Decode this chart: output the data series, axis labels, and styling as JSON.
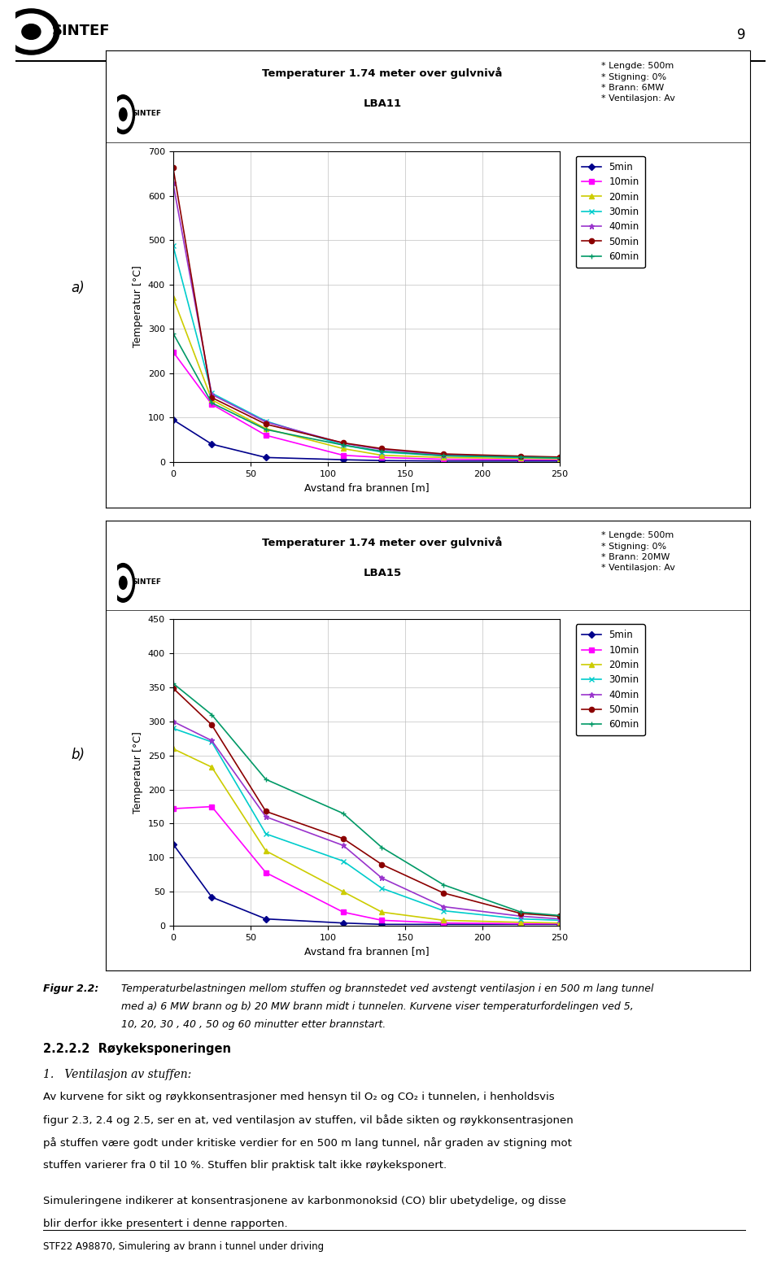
{
  "chart_a": {
    "title_line1": "Temperaturer 1.74 meter over gulvnivå",
    "title_line2": "LBA11",
    "info_text": "* Lengde: 500m\n* Stigning: 0%\n* Brann: 6MW\n* Ventilasjon: Av",
    "xlabel": "Avstand fra brannen [m]",
    "ylabel": "Temperatur [°C]",
    "ylim": [
      0,
      700
    ],
    "yticks": [
      0,
      100,
      200,
      300,
      400,
      500,
      600,
      700
    ],
    "xlim": [
      0,
      250
    ],
    "xticks": [
      0,
      50,
      100,
      150,
      200,
      250
    ],
    "series": {
      "5min": {
        "color": "#00008B",
        "marker": "D",
        "x": [
          0,
          25,
          60,
          110,
          135,
          175,
          225,
          250
        ],
        "y": [
          95,
          40,
          10,
          5,
          3,
          2,
          2,
          2
        ]
      },
      "10min": {
        "color": "#FF00FF",
        "marker": "s",
        "x": [
          0,
          25,
          60,
          110,
          135,
          175,
          225,
          250
        ],
        "y": [
          248,
          130,
          60,
          15,
          10,
          6,
          5,
          5
        ]
      },
      "20min": {
        "color": "#CCCC00",
        "marker": "^",
        "x": [
          0,
          25,
          60,
          110,
          135,
          175,
          225,
          250
        ],
        "y": [
          370,
          140,
          75,
          30,
          15,
          10,
          8,
          7
        ]
      },
      "30min": {
        "color": "#00CCCC",
        "marker": "x",
        "x": [
          0,
          25,
          60,
          110,
          135,
          175,
          225,
          250
        ],
        "y": [
          487,
          155,
          92,
          38,
          22,
          14,
          10,
          9
        ]
      },
      "40min": {
        "color": "#9933CC",
        "marker": "*",
        "x": [
          0,
          25,
          60,
          110,
          135,
          175,
          225,
          250
        ],
        "y": [
          628,
          152,
          90,
          42,
          28,
          16,
          12,
          10
        ]
      },
      "50min": {
        "color": "#8B0000",
        "marker": "o",
        "x": [
          0,
          25,
          60,
          110,
          135,
          175,
          225,
          250
        ],
        "y": [
          663,
          145,
          85,
          43,
          30,
          18,
          13,
          11
        ]
      },
      "60min": {
        "color": "#009966",
        "marker": "+",
        "x": [
          0,
          25,
          60,
          110,
          135,
          175,
          225,
          250
        ],
        "y": [
          290,
          133,
          73,
          38,
          24,
          14,
          11,
          9
        ]
      }
    }
  },
  "chart_b": {
    "title_line1": "Temperaturer 1.74 meter over gulvnivå",
    "title_line2": "LBA15",
    "info_text": "* Lengde: 500m\n* Stigning: 0%\n* Brann: 20MW\n* Ventilasjon: Av",
    "xlabel": "Avstand fra brannen [m]",
    "ylabel": "Temperatur [°C]",
    "ylim": [
      0,
      450
    ],
    "yticks": [
      0,
      50,
      100,
      150,
      200,
      250,
      300,
      350,
      400,
      450
    ],
    "xlim": [
      0,
      250
    ],
    "xticks": [
      0,
      50,
      100,
      150,
      200,
      250
    ],
    "series": {
      "5min": {
        "color": "#00008B",
        "marker": "D",
        "x": [
          0,
          25,
          60,
          110,
          135,
          175,
          225,
          250
        ],
        "y": [
          120,
          42,
          10,
          4,
          2,
          2,
          2,
          2
        ]
      },
      "10min": {
        "color": "#FF00FF",
        "marker": "s",
        "x": [
          0,
          25,
          60,
          110,
          135,
          175,
          225,
          250
        ],
        "y": [
          172,
          175,
          78,
          20,
          8,
          4,
          3,
          3
        ]
      },
      "20min": {
        "color": "#CCCC00",
        "marker": "^",
        "x": [
          0,
          25,
          60,
          110,
          135,
          175,
          225,
          250
        ],
        "y": [
          260,
          233,
          110,
          50,
          20,
          8,
          5,
          4
        ]
      },
      "30min": {
        "color": "#00CCCC",
        "marker": "x",
        "x": [
          0,
          25,
          60,
          110,
          135,
          175,
          225,
          250
        ],
        "y": [
          290,
          270,
          135,
          95,
          55,
          22,
          10,
          8
        ]
      },
      "40min": {
        "color": "#9933CC",
        "marker": "*",
        "x": [
          0,
          25,
          60,
          110,
          135,
          175,
          225,
          250
        ],
        "y": [
          300,
          272,
          160,
          118,
          70,
          28,
          14,
          10
        ]
      },
      "50min": {
        "color": "#8B0000",
        "marker": "o",
        "x": [
          0,
          25,
          60,
          110,
          135,
          175,
          225,
          250
        ],
        "y": [
          349,
          295,
          168,
          128,
          90,
          48,
          18,
          14
        ]
      },
      "60min": {
        "color": "#009966",
        "marker": "+",
        "x": [
          0,
          25,
          60,
          110,
          135,
          175,
          225,
          250
        ],
        "y": [
          356,
          310,
          215,
          165,
          115,
          60,
          20,
          15
        ]
      }
    }
  },
  "page_number": "9",
  "fig_label": "Figur 2.2:",
  "fig_text1": "Temperaturbelastningen mellom stuffen og brannstedet ved avstengt ventilasjon i en 500 m lang tunnel",
  "fig_text2": "med a) 6 MW brann og b) 20 MW brann midt i tunnelen. Kurvene viser temperaturfordelingen ved 5,",
  "fig_text3": "10, 20, 30 , 40 , 50 og 60 minutter etter brannstart.",
  "section_heading": "2.2.2.2  Røykeksponeringen",
  "subsection": "1.   Ventilasjon av stuffen:",
  "para1": "Av kurvene for sikt og røykkonsentrasjoner med hensyn til O₂ og CO₂ i tunnelen, i henholdsvis figur 2.3, 2.4 og 2.5, ser en at, ved ventilasjon av stuffen, vil både sikten og røykkonsentrasjonen på stuffen være godt under kritiske verdier for en 500 m lang tunnel, når graden av stigning mot stuffen varierer fra 0 til 10 %. Stuffen blir praktisk talt ikke røykeksponert.",
  "para2": "Simuleringene indikerer at konsentrasjonene av karbonmonoksid (CO) blir ubetydelige, og disse blir derfor ikke presentert i denne rapporten.",
  "footer": "STF22 A98870, Simulering av brann i tunnel under driving"
}
